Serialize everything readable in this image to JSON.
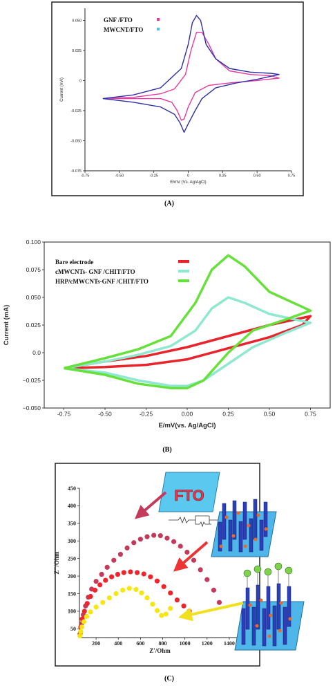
{
  "panel_labels": {
    "a": "(A)",
    "b": "(B)",
    "c": "(C)"
  },
  "chart_data": [
    {
      "type": "line",
      "panel": "A",
      "xlabel": "E/mV (Vs. Ag/AgCl)",
      "ylabel": "Current (mA)",
      "xlim": [
        -0.75,
        0.75
      ],
      "ylim": [
        -0.075,
        0.06
      ],
      "xticks": [
        -0.75,
        -0.5,
        -0.25,
        0,
        0.25,
        0.5,
        0.75
      ],
      "xtick_labels": [
        "-0.75",
        "-0.50",
        "-0.25",
        "0",
        "0.25",
        "0.50",
        "0.75"
      ],
      "yticks": [
        -0.075,
        -0.05,
        -0.025,
        0,
        0.025,
        0.05
      ],
      "ytick_labels": [
        "-0.075",
        "-0.050",
        "-0.025",
        "0",
        "0.025",
        "0.050"
      ],
      "legend_position": "top-left",
      "grid": false,
      "series": [
        {
          "name": "GNF /FTO",
          "color": "#e8389f",
          "x": [
            -0.62,
            -0.4,
            -0.2,
            -0.1,
            -0.02,
            0.02,
            0.06,
            0.1,
            0.15,
            0.2,
            0.3,
            0.45,
            0.6,
            0.66,
            0.5,
            0.3,
            0.15,
            0.05,
            0.0,
            -0.03,
            -0.05,
            -0.08,
            -0.12,
            -0.2,
            -0.4,
            -0.62
          ],
          "y": [
            -0.015,
            -0.014,
            -0.011,
            -0.007,
            0.005,
            0.025,
            0.04,
            0.04,
            0.03,
            0.018,
            0.008,
            0.005,
            0.004,
            0.002,
            0.0,
            -0.002,
            -0.004,
            -0.01,
            -0.022,
            -0.032,
            -0.033,
            -0.025,
            -0.018,
            -0.015,
            -0.015,
            -0.015
          ]
        },
        {
          "name": "MWCNT/FTO",
          "color": "#2e2ea8",
          "legend_marker_color": "#4fc3f7",
          "x": [
            -0.62,
            -0.4,
            -0.2,
            -0.05,
            0.0,
            0.03,
            0.06,
            0.09,
            0.13,
            0.2,
            0.3,
            0.45,
            0.6,
            0.66,
            0.5,
            0.35,
            0.2,
            0.1,
            0.05,
            0.0,
            -0.03,
            -0.06,
            -0.1,
            -0.2,
            -0.4,
            -0.62
          ],
          "y": [
            -0.015,
            -0.012,
            -0.006,
            0.01,
            0.03,
            0.048,
            0.054,
            0.05,
            0.03,
            0.018,
            0.01,
            0.007,
            0.006,
            0.005,
            0.001,
            -0.002,
            -0.006,
            -0.015,
            -0.025,
            -0.036,
            -0.043,
            -0.035,
            -0.028,
            -0.022,
            -0.018,
            -0.015
          ]
        }
      ]
    },
    {
      "type": "line",
      "panel": "B",
      "xlabel": "E/mV(vs. Ag/AgCl)",
      "ylabel": "Current (mA)",
      "xlim": [
        -0.87,
        0.87
      ],
      "ylim": [
        -0.05,
        0.1
      ],
      "xticks": [
        -0.75,
        -0.5,
        -0.25,
        0,
        0.25,
        0.5,
        0.75
      ],
      "xtick_labels": [
        "-0.75",
        "-0.50",
        "-0.25",
        "0.00",
        "0.25",
        "0.50",
        "0.75"
      ],
      "yticks": [
        -0.05,
        -0.025,
        0,
        0.025,
        0.05,
        0.075,
        0.1
      ],
      "ytick_labels": [
        "−0.050",
        "−0.025",
        "0.0",
        "0.025",
        "0.050",
        "0.075",
        "0.100"
      ],
      "legend_position": "top-left",
      "grid": false,
      "series": [
        {
          "name": "Bare electrode",
          "color": "#e8232b",
          "x": [
            -0.75,
            -0.5,
            -0.25,
            0.0,
            0.25,
            0.5,
            0.75,
            0.7,
            0.5,
            0.25,
            0.0,
            -0.25,
            -0.5,
            -0.75
          ],
          "y": [
            -0.014,
            -0.008,
            -0.003,
            0.005,
            0.015,
            0.025,
            0.033,
            0.025,
            0.014,
            0.004,
            -0.006,
            -0.011,
            -0.013,
            -0.014
          ]
        },
        {
          "name": "cMWCNTs- GNF /CHIT/FTO",
          "color": "#8fe8d0",
          "x": [
            -0.75,
            -0.5,
            -0.3,
            -0.1,
            0.05,
            0.15,
            0.25,
            0.35,
            0.5,
            0.75,
            0.6,
            0.4,
            0.25,
            0.1,
            0.0,
            -0.1,
            -0.3,
            -0.5,
            -0.75
          ],
          "y": [
            -0.014,
            -0.008,
            -0.002,
            0.006,
            0.02,
            0.04,
            0.05,
            0.045,
            0.035,
            0.027,
            0.018,
            0.005,
            -0.01,
            -0.025,
            -0.03,
            -0.03,
            -0.025,
            -0.018,
            -0.014
          ]
        },
        {
          "name": "HRP/cMWCNTs-GNF /CHIT/FTO",
          "color": "#66e03a",
          "x": [
            -0.75,
            -0.5,
            -0.3,
            -0.1,
            0.05,
            0.15,
            0.25,
            0.35,
            0.5,
            0.75,
            0.6,
            0.4,
            0.25,
            0.1,
            0.0,
            -0.1,
            -0.3,
            -0.5,
            -0.75
          ],
          "y": [
            -0.014,
            -0.005,
            0.003,
            0.015,
            0.045,
            0.075,
            0.088,
            0.078,
            0.055,
            0.038,
            0.03,
            0.02,
            0.0,
            -0.025,
            -0.032,
            -0.032,
            -0.028,
            -0.02,
            -0.014
          ]
        }
      ]
    },
    {
      "type": "scatter",
      "panel": "C",
      "xlabel": "Z'/Ohm",
      "ylabel": "Z\"/Ohm",
      "xlim": [
        50,
        1500
      ],
      "ylim": [
        25,
        450
      ],
      "xticks": [
        200,
        400,
        600,
        800,
        1000,
        1200,
        1400
      ],
      "yticks": [
        50,
        100,
        150,
        200,
        250,
        300,
        350,
        400,
        450
      ],
      "inset_label": "FTO",
      "grid": false,
      "series": [
        {
          "color": "#c43a5a",
          "x": [
            60,
            70,
            85,
            105,
            130,
            160,
            200,
            250,
            300,
            360,
            420,
            480,
            540,
            600,
            660,
            720,
            780,
            840,
            900,
            960,
            1020,
            1080,
            1140,
            1200,
            1260,
            1310
          ],
          "y": [
            40,
            65,
            90,
            115,
            140,
            163,
            185,
            205,
            225,
            245,
            262,
            280,
            295,
            305,
            312,
            316,
            315,
            308,
            298,
            285,
            268,
            245,
            218,
            190,
            160,
            125
          ]
        },
        {
          "color": "#f0252b",
          "x": [
            55,
            62,
            75,
            95,
            120,
            150,
            190,
            235,
            285,
            340,
            395,
            450,
            510,
            570,
            630,
            690,
            750,
            810,
            870,
            930,
            990,
            1040
          ],
          "y": [
            35,
            55,
            78,
            100,
            122,
            142,
            160,
            175,
            188,
            198,
            205,
            210,
            212,
            210,
            206,
            198,
            186,
            170,
            152,
            132,
            115,
            100
          ]
        },
        {
          "color": "#f5e614",
          "x": [
            55,
            62,
            72,
            90,
            115,
            150,
            200,
            260,
            320,
            380,
            440,
            500,
            560,
            610,
            660,
            710,
            750,
            790,
            830,
            870
          ],
          "y": [
            30,
            42,
            55,
            70,
            85,
            98,
            112,
            125,
            138,
            150,
            160,
            165,
            162,
            152,
            138,
            120,
            102,
            88,
            92,
            108
          ]
        }
      ]
    }
  ]
}
